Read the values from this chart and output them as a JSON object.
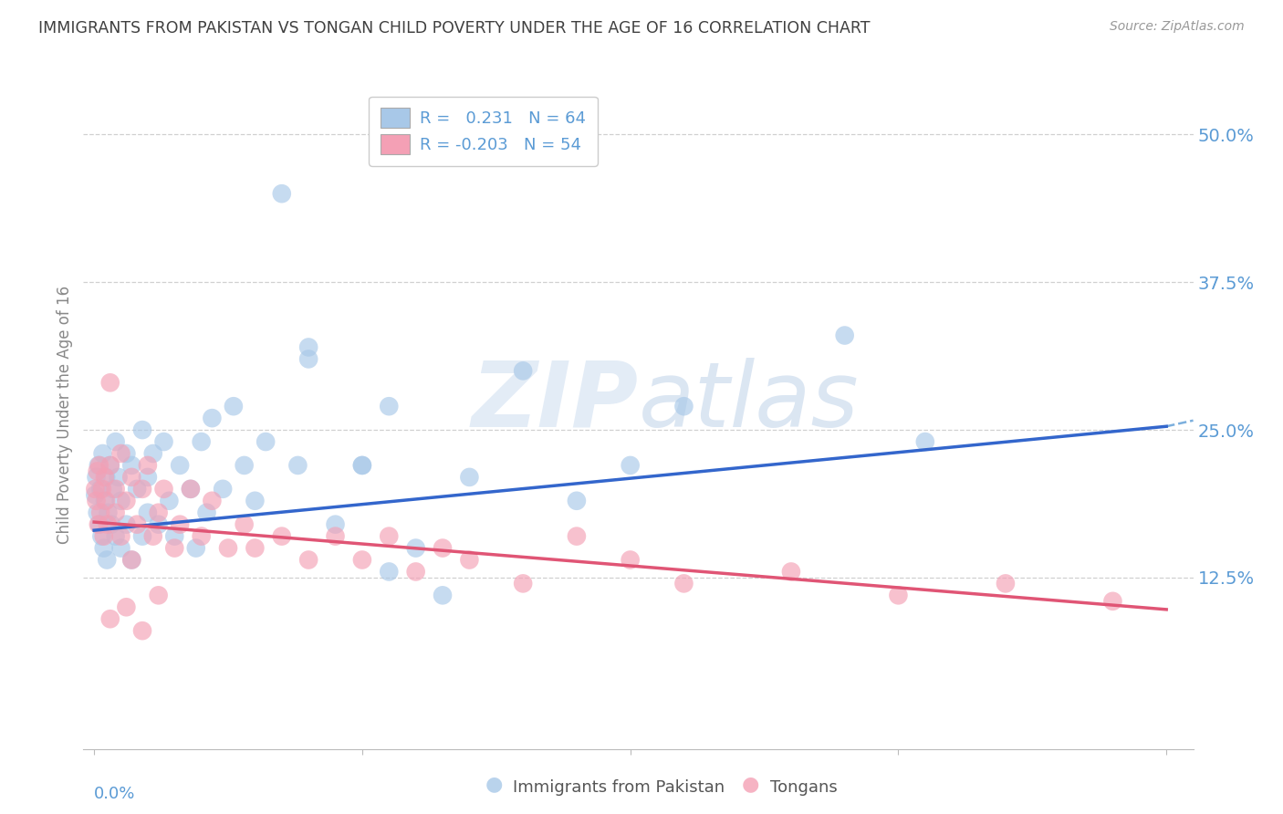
{
  "title": "IMMIGRANTS FROM PAKISTAN VS TONGAN CHILD POVERTY UNDER THE AGE OF 16 CORRELATION CHART",
  "source": "Source: ZipAtlas.com",
  "ylabel": "Child Poverty Under the Age of 16",
  "ytick_labels": [
    "50.0%",
    "37.5%",
    "25.0%",
    "12.5%"
  ],
  "ytick_values": [
    0.5,
    0.375,
    0.25,
    0.125
  ],
  "ylim": [
    -0.02,
    0.545
  ],
  "xlim": [
    -0.002,
    0.205
  ],
  "legend_blue_r": "0.231",
  "legend_blue_n": "64",
  "legend_pink_r": "-0.203",
  "legend_pink_n": "54",
  "blue_color": "#a8c8e8",
  "pink_color": "#f4a0b5",
  "trend_blue": "#3366cc",
  "trend_pink": "#e05575",
  "background_color": "#ffffff",
  "grid_color": "#d0d0d0",
  "axis_label_color": "#5b9bd5",
  "title_color": "#404040",
  "pakistan_scatter_x": [
    0.0002,
    0.0004,
    0.0006,
    0.0008,
    0.001,
    0.0012,
    0.0014,
    0.0016,
    0.0018,
    0.002,
    0.0022,
    0.0024,
    0.0026,
    0.003,
    0.0032,
    0.0035,
    0.004,
    0.004,
    0.0045,
    0.005,
    0.005,
    0.006,
    0.006,
    0.007,
    0.007,
    0.008,
    0.009,
    0.009,
    0.01,
    0.01,
    0.011,
    0.012,
    0.013,
    0.014,
    0.015,
    0.016,
    0.018,
    0.019,
    0.02,
    0.021,
    0.022,
    0.024,
    0.026,
    0.028,
    0.03,
    0.032,
    0.035,
    0.038,
    0.04,
    0.05,
    0.055,
    0.06,
    0.065,
    0.07,
    0.08,
    0.09,
    0.1,
    0.11,
    0.14,
    0.155,
    0.04,
    0.045,
    0.05,
    0.055
  ],
  "pakistan_scatter_y": [
    0.195,
    0.21,
    0.18,
    0.22,
    0.17,
    0.2,
    0.16,
    0.23,
    0.15,
    0.19,
    0.21,
    0.14,
    0.18,
    0.22,
    0.17,
    0.2,
    0.24,
    0.16,
    0.21,
    0.19,
    0.15,
    0.23,
    0.17,
    0.22,
    0.14,
    0.2,
    0.25,
    0.16,
    0.21,
    0.18,
    0.23,
    0.17,
    0.24,
    0.19,
    0.16,
    0.22,
    0.2,
    0.15,
    0.24,
    0.18,
    0.26,
    0.2,
    0.27,
    0.22,
    0.19,
    0.24,
    0.45,
    0.22,
    0.32,
    0.22,
    0.27,
    0.15,
    0.11,
    0.21,
    0.3,
    0.19,
    0.22,
    0.27,
    0.33,
    0.24,
    0.31,
    0.17,
    0.22,
    0.13
  ],
  "tongan_scatter_x": [
    0.0002,
    0.0004,
    0.0006,
    0.0008,
    0.001,
    0.0012,
    0.0015,
    0.0018,
    0.002,
    0.0022,
    0.0025,
    0.003,
    0.003,
    0.004,
    0.004,
    0.005,
    0.005,
    0.006,
    0.007,
    0.007,
    0.008,
    0.009,
    0.01,
    0.011,
    0.012,
    0.013,
    0.015,
    0.016,
    0.018,
    0.02,
    0.022,
    0.025,
    0.028,
    0.03,
    0.035,
    0.04,
    0.045,
    0.05,
    0.055,
    0.06,
    0.065,
    0.07,
    0.08,
    0.09,
    0.1,
    0.11,
    0.13,
    0.15,
    0.17,
    0.19,
    0.003,
    0.006,
    0.009,
    0.012
  ],
  "tongan_scatter_y": [
    0.2,
    0.19,
    0.215,
    0.17,
    0.22,
    0.18,
    0.2,
    0.16,
    0.21,
    0.19,
    0.17,
    0.29,
    0.22,
    0.18,
    0.2,
    0.16,
    0.23,
    0.19,
    0.14,
    0.21,
    0.17,
    0.2,
    0.22,
    0.16,
    0.18,
    0.2,
    0.15,
    0.17,
    0.2,
    0.16,
    0.19,
    0.15,
    0.17,
    0.15,
    0.16,
    0.14,
    0.16,
    0.14,
    0.16,
    0.13,
    0.15,
    0.14,
    0.12,
    0.16,
    0.14,
    0.12,
    0.13,
    0.11,
    0.12,
    0.105,
    0.09,
    0.1,
    0.08,
    0.11
  ],
  "trend_blue_x0": 0.0,
  "trend_blue_y0": 0.165,
  "trend_blue_x1": 0.2,
  "trend_blue_y1": 0.253,
  "trend_blue_dash_x1": 0.205,
  "trend_blue_dash_y1": 0.258,
  "trend_pink_x0": 0.0,
  "trend_pink_y0": 0.172,
  "trend_pink_x1": 0.2,
  "trend_pink_y1": 0.098
}
